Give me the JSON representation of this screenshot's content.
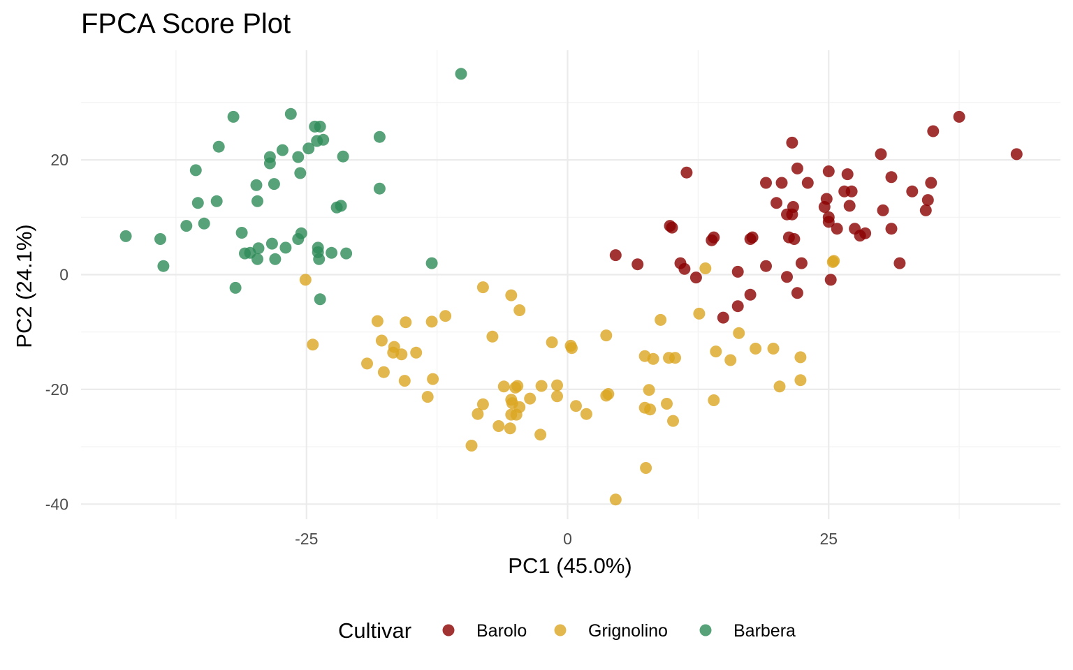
{
  "chart_data": {
    "type": "scatter",
    "title": "FPCA Score Plot",
    "xlabel": "PC1 (45.0%)",
    "ylabel": "PC2 (24.1%)",
    "xlim": [
      -47,
      47
    ],
    "ylim": [
      -42,
      38
    ],
    "x_ticks": [
      -25,
      0,
      25
    ],
    "x_tick_labels": [
      "-25",
      "0",
      "25"
    ],
    "y_ticks": [
      -40,
      -20,
      0,
      20
    ],
    "y_tick_labels": [
      "-40",
      "-20",
      "0",
      "20"
    ],
    "grid": true,
    "legend": {
      "title": "Cultivar",
      "position": "bottom"
    },
    "series": [
      {
        "name": "Barolo",
        "color": "#8b0000",
        "points": [
          [
            37.5,
            27.5
          ],
          [
            43,
            21
          ],
          [
            35,
            25
          ],
          [
            30,
            21
          ],
          [
            21.5,
            23
          ],
          [
            22,
            18.5
          ],
          [
            25,
            18
          ],
          [
            26.8,
            17.5
          ],
          [
            31,
            17
          ],
          [
            23,
            16
          ],
          [
            19,
            16
          ],
          [
            20.5,
            16
          ],
          [
            34.8,
            16
          ],
          [
            33,
            14.5
          ],
          [
            26.5,
            14.5
          ],
          [
            27.2,
            14.5
          ],
          [
            24.8,
            13.2
          ],
          [
            34.5,
            13
          ],
          [
            20,
            12.5
          ],
          [
            24.6,
            11.8
          ],
          [
            21.6,
            11.8
          ],
          [
            27,
            12
          ],
          [
            30.2,
            11.2
          ],
          [
            34.3,
            11.2
          ],
          [
            21,
            10.5
          ],
          [
            21.5,
            10.5
          ],
          [
            25,
            10
          ],
          [
            25,
            9.2
          ],
          [
            25.8,
            8
          ],
          [
            27.5,
            8
          ],
          [
            31,
            8
          ],
          [
            28,
            6.8
          ],
          [
            28.5,
            7.2
          ],
          [
            9.8,
            8.5
          ],
          [
            10,
            8.2
          ],
          [
            14,
            6.5
          ],
          [
            13.8,
            6
          ],
          [
            17.5,
            6.2
          ],
          [
            17.7,
            6.5
          ],
          [
            21.2,
            6.5
          ],
          [
            21.7,
            6.2
          ],
          [
            4.6,
            3.4
          ],
          [
            6.7,
            1.8
          ],
          [
            10.8,
            2
          ],
          [
            11.2,
            1
          ],
          [
            12.3,
            -0.5
          ],
          [
            16.3,
            0.5
          ],
          [
            19,
            1.5
          ],
          [
            22.4,
            2
          ],
          [
            31.8,
            2
          ],
          [
            21,
            -0.4
          ],
          [
            25.2,
            -0.9
          ],
          [
            17.5,
            -3.5
          ],
          [
            22,
            -3.2
          ],
          [
            16.3,
            -5.5
          ],
          [
            14.9,
            -7.5
          ],
          [
            11.4,
            17.8
          ]
        ]
      },
      {
        "name": "Grignolino",
        "color": "#dba520",
        "points": [
          [
            -25.1,
            -0.9
          ],
          [
            -8.1,
            -2.2
          ],
          [
            -5.4,
            -3.6
          ],
          [
            -4.6,
            -6.2
          ],
          [
            -11.7,
            -7.2
          ],
          [
            -18.2,
            -8.1
          ],
          [
            -15.5,
            -8.3
          ],
          [
            -13,
            -8.2
          ],
          [
            -7.2,
            -10.8
          ],
          [
            -17.8,
            -11.5
          ],
          [
            -16.6,
            -12.6
          ],
          [
            -16.7,
            -13.6
          ],
          [
            -15.9,
            -13.9
          ],
          [
            -14.5,
            -13.6
          ],
          [
            -24.4,
            -12.2
          ],
          [
            -19.2,
            -15.5
          ],
          [
            -17.6,
            -17
          ],
          [
            -15.6,
            -18.5
          ],
          [
            -12.9,
            -18.2
          ],
          [
            -13.4,
            -21.3
          ],
          [
            -6.1,
            -19.5
          ],
          [
            -5,
            -19.7
          ],
          [
            -4.8,
            -19.4
          ],
          [
            -2.5,
            -19.4
          ],
          [
            -1,
            -19.3
          ],
          [
            -1,
            -21.2
          ],
          [
            -3.6,
            -21.6
          ],
          [
            -5.4,
            -21.8
          ],
          [
            -5.3,
            -22.4
          ],
          [
            -4.6,
            -23.1
          ],
          [
            -8.1,
            -22.6
          ],
          [
            -8.6,
            -24.3
          ],
          [
            -5.4,
            -24.4
          ],
          [
            -4.9,
            -24.4
          ],
          [
            -6.6,
            -26.4
          ],
          [
            -5.5,
            -26.8
          ],
          [
            -2.6,
            -27.9
          ],
          [
            -9.2,
            -29.8
          ],
          [
            -1.5,
            -11.8
          ],
          [
            0.3,
            -12.4
          ],
          [
            0.4,
            -12.8
          ],
          [
            3.7,
            -10.6
          ],
          [
            0.8,
            -22.9
          ],
          [
            1.8,
            -24.3
          ],
          [
            3.7,
            -21.1
          ],
          [
            3.9,
            -20.8
          ],
          [
            7.4,
            -14.2
          ],
          [
            8.2,
            -14.7
          ],
          [
            9.7,
            -14.5
          ],
          [
            10.3,
            -14.5
          ],
          [
            7.8,
            -20.1
          ],
          [
            7.4,
            -23.2
          ],
          [
            7.9,
            -23.5
          ],
          [
            9.5,
            -22.5
          ],
          [
            10.1,
            -25.5
          ],
          [
            7.5,
            -33.7
          ],
          [
            4.6,
            -39.2
          ],
          [
            8.9,
            -7.9
          ],
          [
            12.6,
            -6.8
          ],
          [
            13.2,
            1.1
          ],
          [
            14.2,
            -13.4
          ],
          [
            15.6,
            -14.9
          ],
          [
            16.4,
            -10.2
          ],
          [
            14,
            -21.9
          ],
          [
            18,
            -12.9
          ],
          [
            19.7,
            -12.9
          ],
          [
            20.3,
            -19.5
          ],
          [
            22.3,
            -14.4
          ],
          [
            22.3,
            -18.4
          ],
          [
            25.5,
            2.4
          ],
          [
            25.4,
            2.2
          ]
        ]
      },
      {
        "name": "Barbera",
        "color": "#2e8b57",
        "points": [
          [
            -10.2,
            35
          ],
          [
            -32,
            27.5
          ],
          [
            -26.5,
            28
          ],
          [
            -23.7,
            25.8
          ],
          [
            -24.2,
            25.8
          ],
          [
            -23.4,
            23.5
          ],
          [
            -24,
            23.3
          ],
          [
            -18,
            24
          ],
          [
            -33.4,
            22.3
          ],
          [
            -27.3,
            21.7
          ],
          [
            -24.8,
            22
          ],
          [
            -25.8,
            20.5
          ],
          [
            -21.5,
            20.6
          ],
          [
            -28.5,
            20.5
          ],
          [
            -28.5,
            19.4
          ],
          [
            -35.6,
            18.2
          ],
          [
            -25.6,
            17.7
          ],
          [
            -29.8,
            15.6
          ],
          [
            -28.1,
            15.8
          ],
          [
            -18,
            15
          ],
          [
            -35.4,
            12.5
          ],
          [
            -33.6,
            12.8
          ],
          [
            -29.7,
            12.8
          ],
          [
            -22.1,
            11.7
          ],
          [
            -21.7,
            12
          ],
          [
            -34.8,
            8.9
          ],
          [
            -36.5,
            8.5
          ],
          [
            -31.2,
            7.3
          ],
          [
            -25.5,
            7.2
          ],
          [
            -42.3,
            6.7
          ],
          [
            -39,
            6.2
          ],
          [
            -25.8,
            6.2
          ],
          [
            -28.3,
            5.4
          ],
          [
            -27,
            4.7
          ],
          [
            -29.6,
            4.6
          ],
          [
            -30.9,
            3.7
          ],
          [
            -30.4,
            3.8
          ],
          [
            -23.9,
            4.7
          ],
          [
            -23.9,
            3.9
          ],
          [
            -22.6,
            3.8
          ],
          [
            -21.2,
            3.7
          ],
          [
            -29.7,
            2.7
          ],
          [
            -28,
            2.7
          ],
          [
            -23.8,
            2.7
          ],
          [
            -13,
            2
          ],
          [
            -38.7,
            1.5
          ],
          [
            -31.8,
            -2.3
          ],
          [
            -23.7,
            -4.3
          ]
        ]
      }
    ]
  }
}
